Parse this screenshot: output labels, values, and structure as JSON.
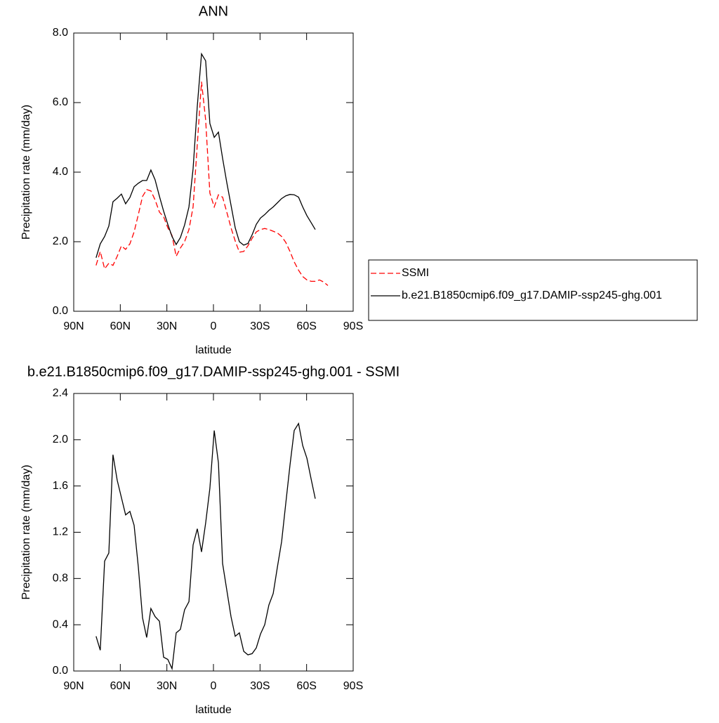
{
  "chart_data": [
    {
      "type": "line",
      "title": "ANN",
      "xlabel": "latitude",
      "ylabel": "Precipitation rate (mm/day)",
      "x": [
        75.6,
        72.9,
        70.1,
        67.4,
        64.7,
        62.0,
        59.3,
        56.6,
        53.8,
        51.1,
        48.4,
        45.7,
        43.0,
        40.3,
        37.6,
        34.8,
        32.1,
        29.4,
        26.7,
        24.0,
        21.3,
        18.6,
        15.8,
        13.1,
        10.4,
        7.7,
        5.0,
        2.3,
        -0.5,
        -3.2,
        -5.9,
        -8.6,
        -11.3,
        -14.0,
        -16.7,
        -19.5,
        -22.2,
        -24.9,
        -27.6,
        -30.3,
        -33.0,
        -35.7,
        -38.5,
        -41.2,
        -43.9,
        -46.6,
        -49.3,
        -52.0,
        -54.8,
        -57.5,
        -60.2,
        -62.9,
        -65.6,
        -68.3,
        -71.0,
        -73.7
      ],
      "series": [
        {
          "name": "SSMI",
          "color": "#ff0000",
          "line_style": "dashed",
          "values": [
            1.32,
            1.72,
            1.22,
            1.38,
            1.32,
            1.58,
            1.88,
            1.78,
            1.94,
            2.28,
            2.78,
            3.3,
            3.5,
            3.46,
            3.2,
            2.85,
            2.72,
            2.4,
            2.18,
            1.58,
            1.82,
            2.0,
            2.35,
            3.0,
            4.8,
            6.6,
            5.5,
            3.4,
            3.0,
            3.35,
            3.28,
            2.85,
            2.4,
            2.02,
            1.7,
            1.72,
            1.88,
            2.1,
            2.28,
            2.35,
            2.38,
            2.35,
            2.3,
            2.25,
            2.15,
            1.98,
            1.72,
            1.42,
            1.18,
            1.0,
            0.9,
            0.86,
            0.86,
            0.9,
            0.84,
            0.74
          ]
        },
        {
          "name": "b.e21.B1850cmip6.f09_g17.DAMIP-ssp245-ghg.001",
          "color": "#000000",
          "line_style": "solid",
          "values": [
            1.54,
            1.94,
            2.15,
            2.45,
            3.15,
            3.25,
            3.37,
            3.09,
            3.27,
            3.58,
            3.68,
            3.76,
            3.76,
            4.06,
            3.78,
            3.3,
            2.88,
            2.5,
            2.15,
            1.92,
            2.12,
            2.48,
            3.0,
            4.1,
            5.9,
            7.4,
            7.2,
            5.4,
            5.0,
            5.15,
            4.4,
            3.7,
            3.05,
            2.4,
            2.0,
            1.9,
            1.95,
            2.2,
            2.5,
            2.68,
            2.78,
            2.9,
            3.0,
            3.12,
            3.24,
            3.32,
            3.36,
            3.35,
            3.28,
            3.0,
            2.75,
            2.55,
            2.35,
            null,
            null,
            null
          ]
        }
      ],
      "xlim": [
        90,
        -90
      ],
      "xticks": [
        {
          "value": 90,
          "label": "90N"
        },
        {
          "value": 60,
          "label": "60N"
        },
        {
          "value": 30,
          "label": "30N"
        },
        0,
        {
          "value": -30,
          "label": "30S"
        },
        {
          "value": -60,
          "label": "60S"
        },
        {
          "value": -90,
          "label": "90S"
        }
      ],
      "ylim": [
        0,
        8
      ],
      "yticks": [
        {
          "value": 0,
          "label": "0.0"
        },
        {
          "value": 2,
          "label": "2.0"
        },
        {
          "value": 4,
          "label": "4.0"
        },
        {
          "value": 6,
          "label": "6.0"
        },
        {
          "value": 8,
          "label": "8.0"
        }
      ],
      "legend": "right"
    },
    {
      "type": "line",
      "title": "b.e21.B1850cmip6.f09_g17.DAMIP-ssp245-ghg.001 - SSMI",
      "xlabel": "latitude",
      "ylabel": "Precipitation rate (mm/day)",
      "x": [
        75.6,
        72.9,
        70.1,
        67.4,
        64.7,
        62.0,
        59.3,
        56.6,
        53.8,
        51.1,
        48.4,
        45.7,
        43.0,
        40.3,
        37.6,
        34.8,
        32.1,
        29.4,
        26.7,
        24.0,
        21.3,
        18.6,
        15.8,
        13.1,
        10.4,
        7.7,
        5.0,
        2.3,
        -0.5,
        -3.2,
        -5.9,
        -8.6,
        -11.3,
        -14.0,
        -16.7,
        -19.5,
        -22.2,
        -24.9,
        -27.6,
        -30.3,
        -33.0,
        -35.7,
        -38.5,
        -41.2,
        -43.9,
        -46.6,
        -49.3,
        -52.0,
        -54.8,
        -57.5,
        -60.2,
        -62.9,
        -65.6
      ],
      "values": [
        0.3,
        0.18,
        0.95,
        1.02,
        1.87,
        1.65,
        1.5,
        1.35,
        1.38,
        1.26,
        0.9,
        0.46,
        0.29,
        0.54,
        0.47,
        0.43,
        0.12,
        0.1,
        0.02,
        0.33,
        0.36,
        0.53,
        0.6,
        1.09,
        1.23,
        1.03,
        1.28,
        1.58,
        2.08,
        1.8,
        0.93,
        0.7,
        0.47,
        0.3,
        0.33,
        0.17,
        0.14,
        0.15,
        0.2,
        0.32,
        0.4,
        0.57,
        0.67,
        0.9,
        1.12,
        1.45,
        1.78,
        2.08,
        2.14,
        1.95,
        1.84,
        1.66,
        1.49
      ],
      "color": "#000000",
      "xlim": [
        90,
        -90
      ],
      "xticks": [
        {
          "value": 90,
          "label": "90N"
        },
        {
          "value": 60,
          "label": "60N"
        },
        {
          "value": 30,
          "label": "30N"
        },
        0,
        {
          "value": -30,
          "label": "30S"
        },
        {
          "value": -60,
          "label": "60S"
        },
        {
          "value": -90,
          "label": "90S"
        }
      ],
      "ylim": [
        0,
        2.4
      ],
      "yticks": [
        {
          "value": 0,
          "label": "0.0"
        },
        {
          "value": 0.4,
          "label": "0.4"
        },
        {
          "value": 0.8,
          "label": "0.8"
        },
        {
          "value": 1.2,
          "label": "1.2"
        },
        {
          "value": 1.6,
          "label": "1.6"
        },
        {
          "value": 2.0,
          "label": "2.0"
        },
        {
          "value": 2.4,
          "label": "2.4"
        }
      ]
    }
  ]
}
